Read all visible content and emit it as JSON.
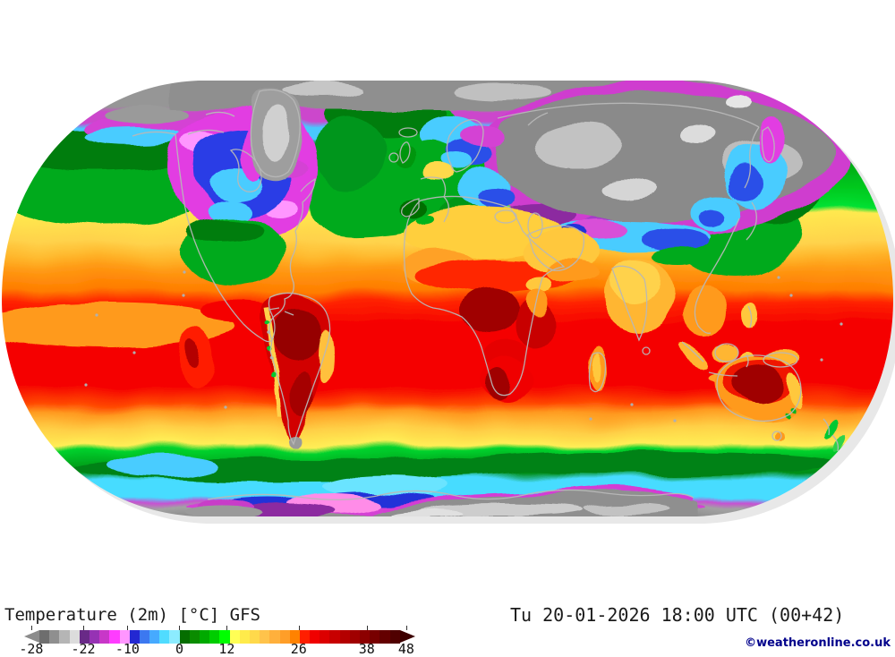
{
  "footer": {
    "product_label": "Temperature (2m) [°C] GFS",
    "valid_label": "Tu 20-01-2026 18:00 UTC (00+42)",
    "credit": "©weatheronline.co.uk"
  },
  "colorbar": {
    "unit": "°C",
    "tick_labels": [
      "-28",
      "-22",
      "-10",
      "0",
      "12",
      "26",
      "38",
      "48"
    ],
    "tick_pos_pct": [
      1.8,
      15.1,
      26.4,
      39.7,
      51.8,
      70.2,
      87.6,
      97.7
    ],
    "left_arrow_color": "#8c8c8c",
    "right_arrow_color": "#3d0000",
    "segment_colors": [
      "#6e6e6e",
      "#8f8f8f",
      "#b5b5b5",
      "#dcdcdc",
      "#692a87",
      "#9632b4",
      "#c837c8",
      "#ff3cff",
      "#ff96ff",
      "#2328d2",
      "#3c78f0",
      "#46aaff",
      "#50dcff",
      "#8cecff",
      "#056e00",
      "#0a8c00",
      "#00aa00",
      "#00cd00",
      "#00ff00",
      "#ffff55",
      "#ffeb4b",
      "#ffd94b",
      "#ffc34b",
      "#ffb03c",
      "#ff9e28",
      "#ff8200",
      "#ff1e00",
      "#f00000",
      "#dc0000",
      "#c80000",
      "#b40000",
      "#a00000",
      "#8c0000",
      "#780000",
      "#640000",
      "#500000"
    ]
  },
  "map": {
    "coastline_color": "#b8b8b8",
    "background_color": "#ffffff"
  }
}
